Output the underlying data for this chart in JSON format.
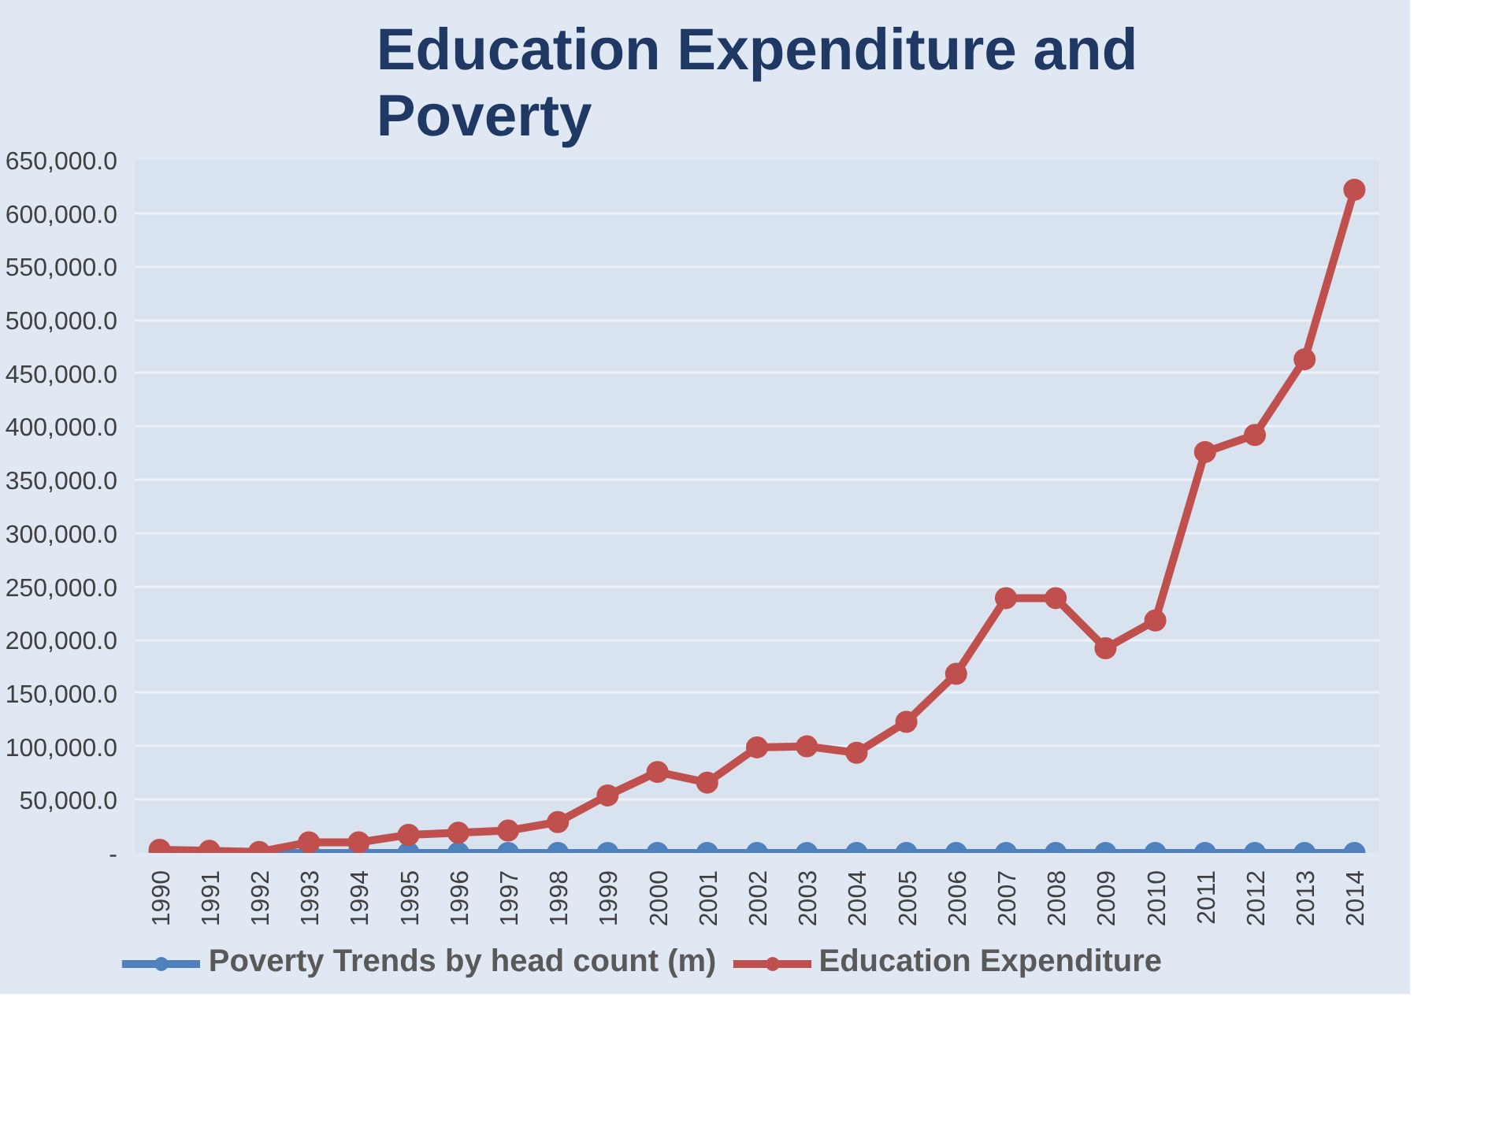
{
  "chart_data": {
    "type": "line",
    "title": "Education Expenditure and Poverty",
    "categories": [
      "1990",
      "1991",
      "1992",
      "1993",
      "1994",
      "1995",
      "1996",
      "1997",
      "1998",
      "1999",
      "2000",
      "2001",
      "2002",
      "2003",
      "2004",
      "2005",
      "2006",
      "2007",
      "2008",
      "2009",
      "2010",
      "2011",
      "2012",
      "2013",
      "2014"
    ],
    "series": [
      {
        "name": "Poverty Trends by head count (m)",
        "color": "#4f81bd",
        "values": [
          0,
          0,
          0,
          0,
          0,
          0,
          0,
          0,
          0,
          0,
          0,
          0,
          0,
          0,
          0,
          0,
          0,
          0,
          0,
          0,
          0,
          0,
          0,
          0,
          0
        ]
      },
      {
        "name": "Education Expenditure",
        "color": "#c0504d",
        "values": [
          3000,
          2000,
          1000,
          10000,
          10000,
          17000,
          19000,
          21000,
          29000,
          54000,
          76000,
          66000,
          99000,
          100000,
          94000,
          123000,
          168000,
          239000,
          239000,
          192000,
          218000,
          376000,
          392000,
          463000,
          622000
        ]
      }
    ],
    "ylim": [
      0,
      650000
    ],
    "yticks": [
      {
        "value": 0,
        "label": "-"
      },
      {
        "value": 50000,
        "label": "50,000.0"
      },
      {
        "value": 100000,
        "label": "100,000.0"
      },
      {
        "value": 150000,
        "label": "150,000.0"
      },
      {
        "value": 200000,
        "label": "200,000.0"
      },
      {
        "value": 250000,
        "label": "250,000.0"
      },
      {
        "value": 300000,
        "label": "300,000.0"
      },
      {
        "value": 350000,
        "label": "350,000.0"
      },
      {
        "value": 400000,
        "label": "400,000.0"
      },
      {
        "value": 450000,
        "label": "450,000.0"
      },
      {
        "value": 500000,
        "label": "500,000.0"
      },
      {
        "value": 550000,
        "label": "550,000.0"
      },
      {
        "value": 600000,
        "label": "600,000.0"
      },
      {
        "value": 650000,
        "label": "650,000.0"
      }
    ],
    "grid": "y",
    "legend": "bottom",
    "marker": "circle",
    "line_style": "solid"
  }
}
